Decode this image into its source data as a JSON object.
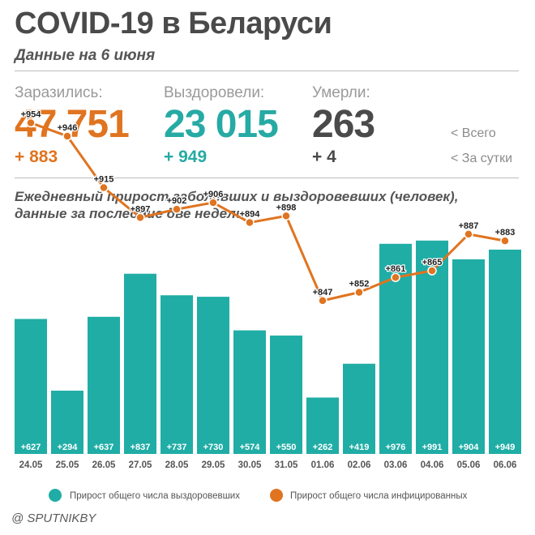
{
  "header": {
    "title": "COVID-19 в Беларуси",
    "subtitle": "Данные на 6 июня"
  },
  "stats": {
    "infected": {
      "label": "Заразились:",
      "total": "47 751",
      "delta": "+ 883",
      "color": "#e07420"
    },
    "recovered": {
      "label": "Выздоровели:",
      "total": "23 015",
      "delta": "+ 949",
      "color": "#26aaa4"
    },
    "deaths": {
      "label": "Умерли:",
      "total": "263",
      "delta": "+ 4",
      "color": "#4a4a4a"
    }
  },
  "legend_keys": {
    "total": "<  Всего",
    "daily": "<  За сутки"
  },
  "chart_title_line1": "Ежедневный прирост заболевших и выздоровевших (человек),",
  "chart_title_line2": "данные за последние две недели",
  "chart_data": {
    "type": "bar",
    "categories": [
      "24.05",
      "25.05",
      "26.05",
      "27.05",
      "28.05",
      "29.05",
      "30.05",
      "31.05",
      "01.06",
      "02.06",
      "03.06",
      "04.06",
      "05.06",
      "06.06"
    ],
    "series": [
      {
        "name": "Прирост общего числа выздоровевших",
        "type": "bar",
        "color": "#20ada6",
        "values": [
          627,
          294,
          637,
          837,
          737,
          730,
          574,
          550,
          262,
          419,
          976,
          991,
          904,
          949
        ],
        "labels": [
          "+627",
          "+294",
          "+637",
          "+837",
          "+737",
          "+730",
          "+574",
          "+550",
          "+262",
          "+419",
          "+976",
          "+991",
          "+904",
          "+949"
        ]
      },
      {
        "name": "Прирост общего числа инфицированных",
        "type": "line",
        "color": "#e07420",
        "values": [
          954,
          946,
          915,
          897,
          902,
          906,
          894,
          898,
          847,
          852,
          861,
          865,
          887,
          883
        ],
        "labels": [
          "+954",
          "+946",
          "+915",
          "+897",
          "+902",
          "+906",
          "+894",
          "+898",
          "+847",
          "+852",
          "+861",
          "+865",
          "+887",
          "+883"
        ]
      }
    ],
    "ylim": [
      0,
      1000
    ]
  },
  "source": "@ SPUTNIKBY"
}
